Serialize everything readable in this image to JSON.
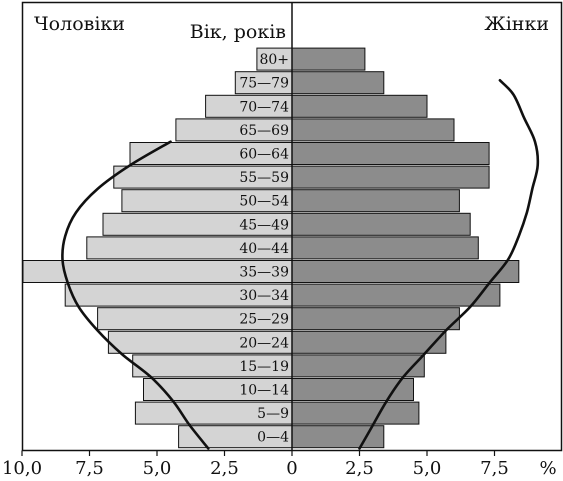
{
  "chart_data": {
    "type": "bar",
    "orientation": "horizontal",
    "layout": "population-pyramid",
    "left_label": "Чоловіки",
    "right_label": "Жінки",
    "center_label": "Вік, років",
    "unit_label": "%",
    "x_tick_labels": [
      "10,0",
      "7,5",
      "5,0",
      "2,5",
      "0",
      "2,5",
      "5,0",
      "7,5"
    ],
    "x_tick_values": [
      -10,
      -7.5,
      -5,
      -2.5,
      0,
      2.5,
      5,
      7.5
    ],
    "xlim": [
      -10,
      9.2
    ],
    "categories": [
      "0—4",
      "5—9",
      "10—14",
      "15—19",
      "20—24",
      "25—29",
      "30—34",
      "35—39",
      "40—44",
      "45—49",
      "50—54",
      "55—59",
      "60—64",
      "65—69",
      "70—74",
      "75—79",
      "80+"
    ],
    "series": [
      {
        "name": "Чоловіки",
        "color": "#d4d4d4",
        "values": [
          4.2,
          5.8,
          5.5,
          5.9,
          6.8,
          7.2,
          8.4,
          10.0,
          7.6,
          7.0,
          6.3,
          6.6,
          6.0,
          4.3,
          3.2,
          2.1,
          1.3
        ]
      },
      {
        "name": "Жінки",
        "color": "#8c8c8c",
        "values": [
          3.4,
          4.7,
          4.5,
          4.9,
          5.7,
          6.2,
          7.7,
          8.4,
          6.9,
          6.6,
          6.2,
          7.3,
          7.3,
          6.0,
          5.0,
          3.4,
          2.7
        ]
      }
    ],
    "curves": [
      {
        "side": "left",
        "x": [
          3.1,
          3.8,
          4.4,
          5.2,
          6.3,
          7.2,
          7.9,
          8.3,
          8.5,
          8.4,
          8.0,
          7.2,
          6.0,
          4.5
        ],
        "y": [
          0,
          1,
          2,
          3,
          4,
          5,
          6,
          7,
          8,
          9,
          10,
          11,
          12,
          13
        ]
      },
      {
        "side": "right",
        "x": [
          2.5,
          3.0,
          3.5,
          4.1,
          4.9,
          5.7,
          6.6,
          7.3,
          8.0,
          8.4,
          8.7,
          8.9,
          9.1,
          9.0,
          8.6,
          8.2,
          7.7
        ],
        "y": [
          0,
          1,
          2,
          3,
          4,
          5,
          6,
          7,
          8,
          9,
          10,
          11,
          12,
          13,
          14,
          15,
          15.6
        ]
      }
    ],
    "line_color": "#111111"
  }
}
